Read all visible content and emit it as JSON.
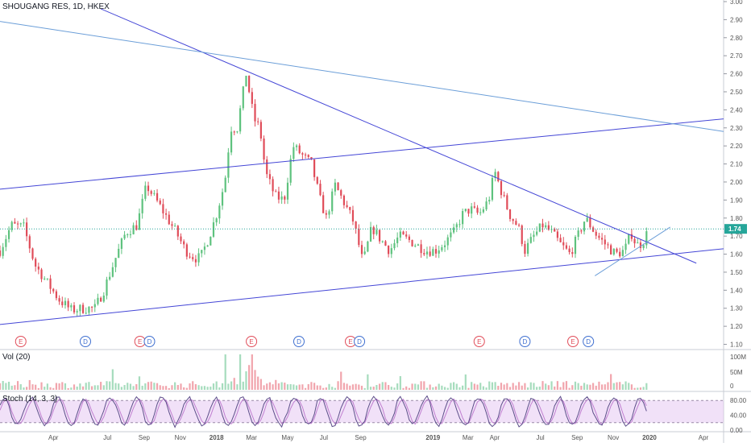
{
  "header": {
    "title": "SHOUGANG RES, 1D, HKEX"
  },
  "volume_panel": {
    "label": "Vol (20)",
    "ticks": [
      "100M",
      "50M",
      "0"
    ]
  },
  "stoch_panel": {
    "label": "Stoch (14, 3, 3)",
    "ticks": [
      "80.00",
      "40.00",
      "0.00"
    ]
  },
  "colors": {
    "up": "#5ec27e",
    "down": "#e04c59",
    "trend": "#4446d6",
    "trend_light": "#6b9ed8",
    "price_line": "#26a69a",
    "stoch_band": "#e5c8f3",
    "stoch_line": "#5d4e8a",
    "event_e": "#e04c59",
    "event_d": "#3f6fd0"
  },
  "chart_data": {
    "type": "candlestick",
    "title": "SHOUGANG RES, 1D, HKEX",
    "y_ticks": [
      "3.00",
      "2.90",
      "2.80",
      "2.70",
      "2.60",
      "2.50",
      "2.40",
      "2.30",
      "2.20",
      "2.10",
      "2.00",
      "1.90",
      "1.80",
      "1.70",
      "1.60",
      "1.50",
      "1.40",
      "1.30",
      "1.20",
      "1.10"
    ],
    "ylim": [
      1.08,
      3.0
    ],
    "last_price": "1.74",
    "x_ticks": [
      "Apr",
      "Jul",
      "Sep",
      "Nov",
      "2018",
      "Mar",
      "May",
      "Jul",
      "Sep",
      "2019",
      "Mar",
      "Apr",
      "Jul",
      "Sep",
      "Nov",
      "2020",
      "Apr"
    ],
    "x_range": [
      "2017-01-01",
      "2020-05-05"
    ],
    "price_path": [
      [
        "2017-01-01",
        1.62
      ],
      [
        "2017-01-20",
        1.76
      ],
      [
        "2017-02-10",
        1.75
      ],
      [
        "2017-03-01",
        1.54
      ],
      [
        "2017-03-20",
        1.45
      ],
      [
        "2017-04-10",
        1.35
      ],
      [
        "2017-05-01",
        1.29
      ],
      [
        "2017-05-25",
        1.3
      ],
      [
        "2017-06-10",
        1.3
      ],
      [
        "2017-06-25",
        1.4
      ],
      [
        "2017-07-15",
        1.58
      ],
      [
        "2017-08-01",
        1.72
      ],
      [
        "2017-08-20",
        1.76
      ],
      [
        "2017-09-05",
        1.98
      ],
      [
        "2017-09-25",
        1.88
      ],
      [
        "2017-10-10",
        1.8
      ],
      [
        "2017-10-25",
        1.72
      ],
      [
        "2017-11-10",
        1.62
      ],
      [
        "2017-11-25",
        1.58
      ],
      [
        "2017-12-05",
        1.58
      ],
      [
        "2017-12-20",
        1.7
      ],
      [
        "2018-01-01",
        1.82
      ],
      [
        "2018-01-15",
        2.0
      ],
      [
        "2018-01-25",
        2.3
      ],
      [
        "2018-02-05",
        2.3
      ],
      [
        "2018-02-20",
        2.6
      ],
      [
        "2018-03-05",
        2.35
      ],
      [
        "2018-03-15",
        2.3
      ],
      [
        "2018-03-25",
        2.05
      ],
      [
        "2018-04-10",
        1.92
      ],
      [
        "2018-04-25",
        1.9
      ],
      [
        "2018-05-10",
        2.2
      ],
      [
        "2018-05-25",
        2.15
      ],
      [
        "2018-06-10",
        2.1
      ],
      [
        "2018-06-25",
        1.9
      ],
      [
        "2018-07-05",
        1.8
      ],
      [
        "2018-07-20",
        1.98
      ],
      [
        "2018-08-05",
        1.88
      ],
      [
        "2018-08-20",
        1.78
      ],
      [
        "2018-09-05",
        1.55
      ],
      [
        "2018-09-20",
        1.75
      ],
      [
        "2018-10-05",
        1.68
      ],
      [
        "2018-10-20",
        1.62
      ],
      [
        "2018-11-05",
        1.7
      ],
      [
        "2018-11-20",
        1.68
      ],
      [
        "2018-12-05",
        1.65
      ],
      [
        "2018-12-20",
        1.62
      ],
      [
        "2019-01-05",
        1.62
      ],
      [
        "2019-01-20",
        1.66
      ],
      [
        "2019-02-05",
        1.72
      ],
      [
        "2019-02-20",
        1.82
      ],
      [
        "2019-03-05",
        1.85
      ],
      [
        "2019-03-20",
        1.82
      ],
      [
        "2019-04-05",
        1.9
      ],
      [
        "2019-04-15",
        2.06
      ],
      [
        "2019-04-25",
        1.96
      ],
      [
        "2019-05-10",
        1.82
      ],
      [
        "2019-05-25",
        1.75
      ],
      [
        "2019-06-05",
        1.62
      ],
      [
        "2019-06-20",
        1.7
      ],
      [
        "2019-07-05",
        1.76
      ],
      [
        "2019-07-20",
        1.72
      ],
      [
        "2019-08-05",
        1.65
      ],
      [
        "2019-08-20",
        1.6
      ],
      [
        "2019-09-05",
        1.72
      ],
      [
        "2019-09-15",
        1.8
      ],
      [
        "2019-09-25",
        1.75
      ],
      [
        "2019-10-05",
        1.7
      ],
      [
        "2019-10-20",
        1.65
      ],
      [
        "2019-11-05",
        1.6
      ],
      [
        "2019-11-20",
        1.62
      ],
      [
        "2019-12-01",
        1.72
      ],
      [
        "2019-12-10",
        1.65
      ],
      [
        "2019-12-20",
        1.66
      ],
      [
        "2019-12-31",
        1.74
      ]
    ],
    "trendlines": [
      {
        "from": [
          "2017-01-01",
          1.96
        ],
        "to": [
          "2020-05-05",
          2.35
        ]
      },
      {
        "from": [
          "2017-01-01",
          1.21
        ],
        "to": [
          "2020-05-05",
          1.63
        ]
      },
      {
        "from": [
          "2017-06-20",
          2.96
        ],
        "to": [
          "2020-03-20",
          1.55
        ]
      },
      {
        "from": [
          "2017-01-01",
          2.89
        ],
        "to": [
          "2020-05-05",
          2.28
        ]
      },
      {
        "from": [
          "2019-10-01",
          1.48
        ],
        "to": [
          "2020-02-05",
          1.75
        ]
      }
    ],
    "events": [
      {
        "label": "E",
        "date": "2017-02-05"
      },
      {
        "label": "D",
        "date": "2017-05-25"
      },
      {
        "label": "E",
        "date": "2017-08-25"
      },
      {
        "label": "D",
        "date": "2017-09-10"
      },
      {
        "label": "E",
        "date": "2018-03-01"
      },
      {
        "label": "D",
        "date": "2018-05-20"
      },
      {
        "label": "E",
        "date": "2018-08-15"
      },
      {
        "label": "D",
        "date": "2018-08-30"
      },
      {
        "label": "E",
        "date": "2019-03-20"
      },
      {
        "label": "D",
        "date": "2019-06-05"
      },
      {
        "label": "E",
        "date": "2019-08-25"
      },
      {
        "label": "D",
        "date": "2019-09-20"
      }
    ]
  }
}
